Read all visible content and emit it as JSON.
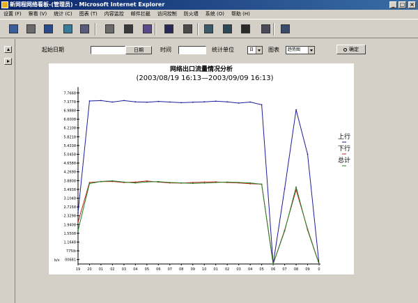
{
  "window": {
    "title": "新网程网络看板-(管理员) - Microsoft Internet Explorer",
    "controls": {
      "minimize": "_",
      "maximize": "□",
      "close": "×"
    }
  },
  "menu": [
    "设置 (F)",
    "察看 (V)",
    "统计 (C)",
    "图表 (T)",
    "内容监控",
    "邮件拦截",
    "访问控制",
    "防火墙",
    "系统 (O)",
    "帮助 (H)"
  ],
  "toolbar_icons": [
    "network-users-icon",
    "keyboard-icon",
    "window-icon",
    "display-icon",
    "monitor-icon",
    "document-icon",
    "search-tools-icon",
    "clock-settings-icon",
    "bar-chart-icon",
    "clock-icon",
    "server-icon",
    "network-icon",
    "shield-icon",
    "database-icon",
    "package-icon"
  ],
  "form": {
    "start_date_label": "起始日期",
    "start_date_value": "",
    "date_button": "日期",
    "time_label": "时间",
    "time_value": "",
    "unit_label": "统计单位",
    "unit_value": "日",
    "chart_label": "图表",
    "chart_value": "趋势图",
    "confirm_button": "确定"
  },
  "chart_data": {
    "type": "line",
    "title": "网络出口流量情况分析",
    "subtitle": "(2003/08/19 16:13—2003/09/09 16:13)",
    "ylabel": "b/s",
    "y_ticks": [
      "00681",
      "775lb",
      "1.1648",
      "1.5508",
      "1.9408",
      "2.3298",
      "2.7158",
      "3.1048",
      "3.4938",
      "3.8808",
      "4.2698",
      "4.6588",
      "5.0458",
      "5.4338",
      "5.8218",
      "6.2108",
      "6.6008",
      "6.9888",
      "7.3778",
      "7.7668"
    ],
    "x": [
      "19",
      "20",
      "01",
      "02",
      "03",
      "04",
      "05",
      "06",
      "07",
      "08",
      "09",
      "10",
      "01",
      "02",
      "03",
      "04",
      "05",
      "06",
      "07",
      "08",
      "09",
      "0"
    ],
    "ylim": [
      0,
      8.4
    ],
    "series": [
      {
        "name": "上行",
        "color": "#1a1a9a",
        "values": [
          2.45,
          7.8,
          7.82,
          7.75,
          7.82,
          7.76,
          7.74,
          7.78,
          7.75,
          7.72,
          7.74,
          7.76,
          7.79,
          7.76,
          7.7,
          7.75,
          7.62,
          0,
          3.6,
          7.38,
          5.25,
          0
        ]
      },
      {
        "name": "下行",
        "color": "#c02020",
        "values": [
          2.0,
          3.9,
          3.94,
          3.95,
          3.9,
          3.92,
          3.97,
          3.92,
          3.88,
          3.87,
          3.9,
          3.92,
          3.93,
          3.9,
          3.88,
          3.84,
          3.82,
          0,
          1.62,
          3.55,
          1.67,
          0
        ]
      },
      {
        "name": "总计",
        "color": "#208020",
        "values": [
          1.6,
          3.85,
          3.95,
          3.98,
          3.92,
          3.88,
          3.93,
          3.94,
          3.9,
          3.88,
          3.86,
          3.87,
          3.9,
          3.92,
          3.9,
          3.88,
          3.82,
          0,
          1.58,
          3.68,
          1.62,
          0
        ]
      }
    ],
    "legend_position": "right"
  }
}
